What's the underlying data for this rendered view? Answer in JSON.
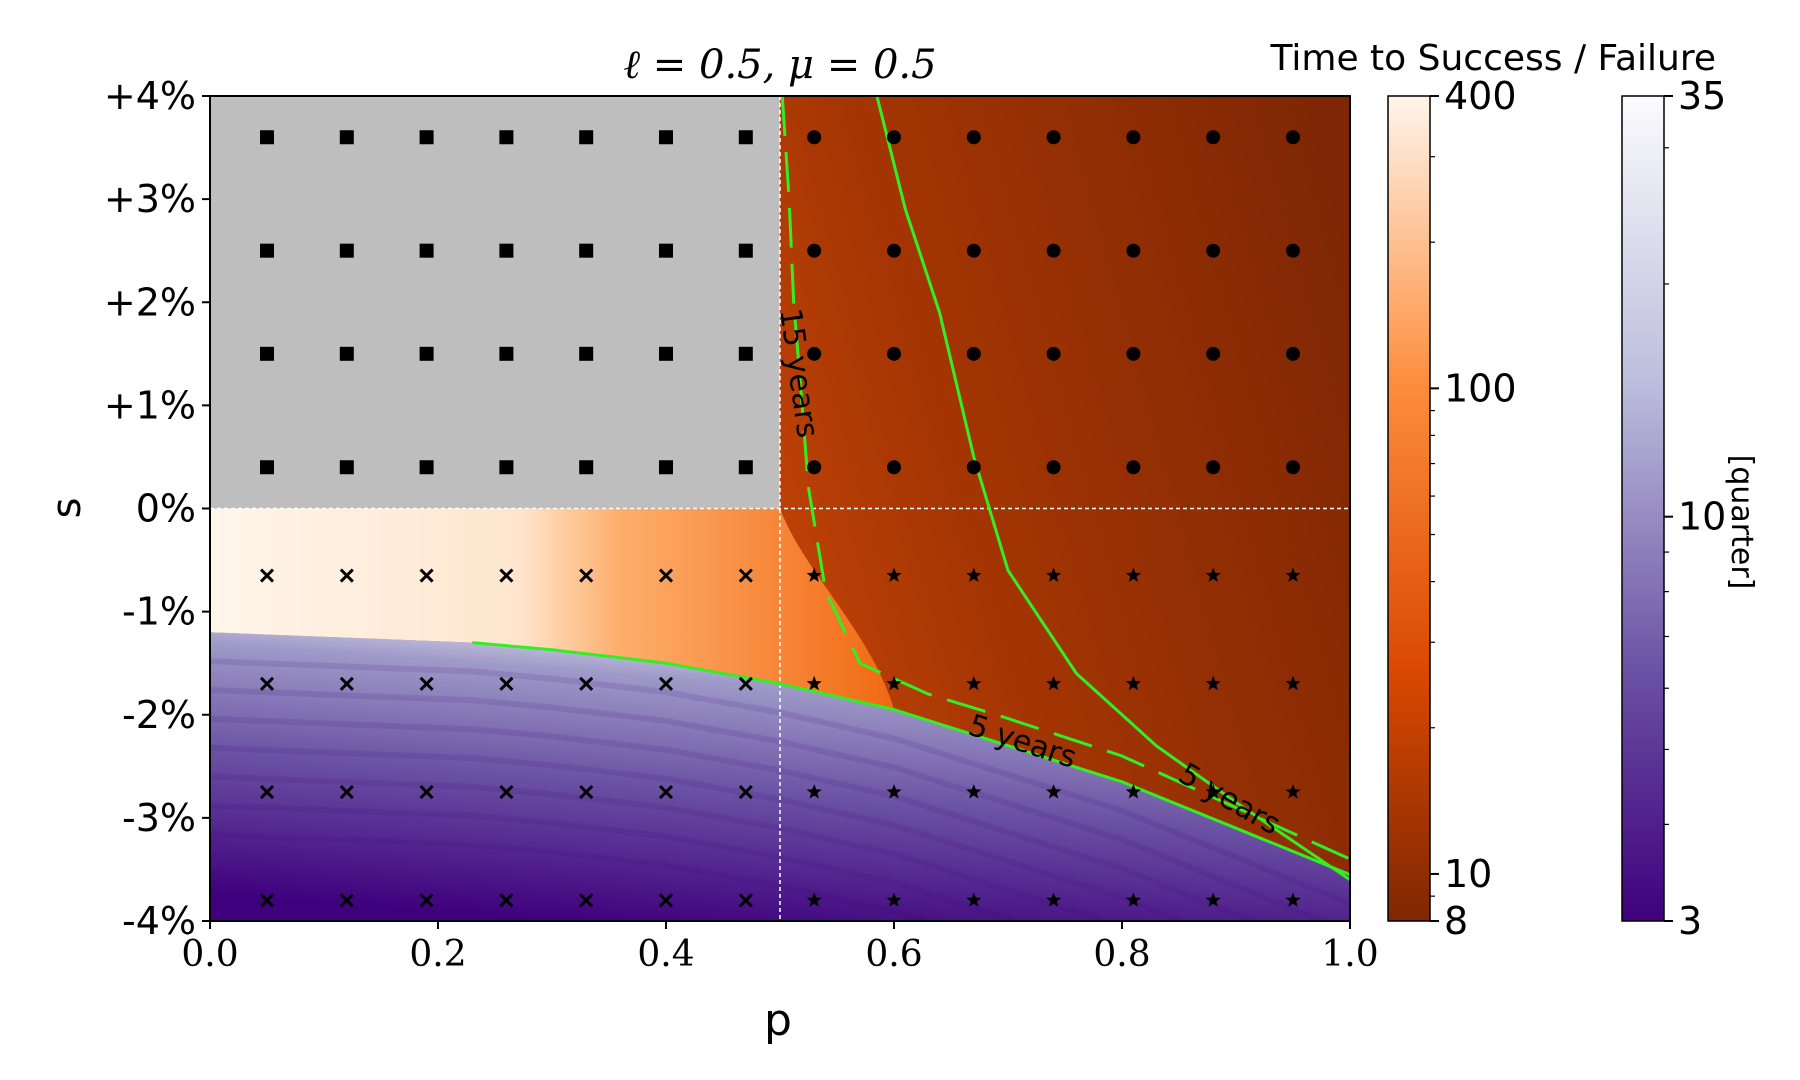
{
  "chart_data": {
    "type": "heatmap",
    "title": "ℓ = 0.5, μ = 0.5",
    "xlabel": "p",
    "ylabel": "s",
    "xlim": [
      0.0,
      1.0
    ],
    "ylim": [
      -4,
      4
    ],
    "x_ticks": [
      "0.0",
      "0.2",
      "0.4",
      "0.6",
      "0.8",
      "1.0"
    ],
    "x_tick_values": [
      0.0,
      0.2,
      0.4,
      0.6,
      0.8,
      1.0
    ],
    "y_ticks": [
      "+4%",
      "+3%",
      "+2%",
      "+1%",
      "0%",
      "-1%",
      "-2%",
      "-3%",
      "-4%"
    ],
    "y_tick_values": [
      4,
      3,
      2,
      1,
      0,
      -1,
      -2,
      -3,
      -4
    ],
    "reference_lines": {
      "p": 0.5,
      "s": 0
    },
    "regions": {
      "grey": "p < 0.5, s > 0",
      "success_orange": "p > 0.5 (and upper band below s = 0)",
      "failure_purple": "lower band, s below about -1.2%"
    },
    "contours": [
      {
        "label": "15 years",
        "points": [
          [
            0.502,
            4.0
          ],
          [
            0.508,
            3.0
          ],
          [
            0.512,
            2.0
          ],
          [
            0.518,
            1.2
          ],
          [
            0.525,
            0.2
          ],
          [
            0.54,
            -0.8
          ],
          [
            0.57,
            -1.5
          ],
          [
            0.63,
            -1.8
          ],
          [
            0.69,
            -2.0
          ],
          [
            0.8,
            -2.4
          ],
          [
            0.9,
            -2.9
          ],
          [
            1.0,
            -3.4
          ]
        ]
      },
      {
        "label": "5 years",
        "points": [
          [
            0.585,
            4.0
          ],
          [
            0.61,
            2.9
          ],
          [
            0.64,
            1.9
          ],
          [
            0.67,
            0.5
          ],
          [
            0.7,
            -0.6
          ],
          [
            0.76,
            -1.6
          ],
          [
            0.83,
            -2.3
          ],
          [
            0.9,
            -2.85
          ],
          [
            1.0,
            -3.6
          ]
        ]
      },
      {
        "label": "5 years",
        "points": [
          [
            0.23,
            -1.3
          ],
          [
            0.3,
            -1.37
          ],
          [
            0.4,
            -1.5
          ],
          [
            0.5,
            -1.7
          ],
          [
            0.6,
            -1.95
          ],
          [
            0.7,
            -2.3
          ],
          [
            0.8,
            -2.65
          ],
          [
            0.9,
            -3.1
          ],
          [
            1.0,
            -3.55
          ]
        ]
      }
    ],
    "marker_grid": {
      "p": [
        0.05,
        0.12,
        0.19,
        0.26,
        0.33,
        0.4,
        0.47,
        0.53,
        0.6,
        0.67,
        0.74,
        0.81,
        0.88,
        0.95
      ],
      "s": [
        3.6,
        2.5,
        1.5,
        0.4,
        -0.65,
        -1.7,
        -2.75,
        -3.8
      ],
      "legend": {
        "square": "p < 0.5, s > 0",
        "circle": "p > 0.5, s > 0",
        "cross": "p < 0.5, s < 0",
        "star": "p > 0.5, s < 0"
      }
    },
    "colorbars": [
      {
        "title": "Time to Success / Failure",
        "label": "",
        "scale": "log",
        "range": [
          8,
          400
        ],
        "tick_labels": [
          "400",
          "100",
          "10",
          "8"
        ],
        "tick_values": [
          400,
          100,
          10,
          8
        ],
        "colors": [
          "#fff5eb",
          "#fd8d3c",
          "#e6550d",
          "#7f2704"
        ]
      },
      {
        "title": "",
        "label": "[quarter]",
        "scale": "log",
        "range": [
          3,
          35
        ],
        "tick_labels": [
          "35",
          "10",
          "3"
        ],
        "tick_values": [
          35,
          10,
          3
        ],
        "colors": [
          "#fcfbfd",
          "#bcbddc",
          "#756bb1",
          "#3f007d"
        ]
      }
    ],
    "colors": {
      "grey_region": "#bebebe",
      "contour": "#33ee22",
      "reference_line": "#ffffff",
      "marker": "#000000"
    }
  }
}
